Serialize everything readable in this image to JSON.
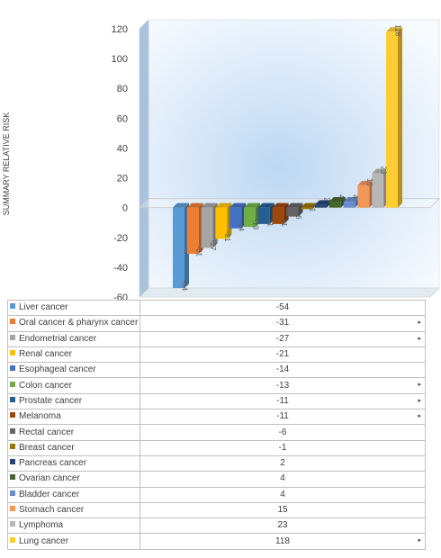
{
  "chart_data": {
    "type": "bar",
    "ylabel": "SUMMARY RELATIVE RISK",
    "ylim": [
      -60,
      120
    ],
    "yticks": [
      -60,
      -40,
      -20,
      0,
      20,
      40,
      60,
      80,
      100,
      120
    ],
    "categories": [
      "Liver cancer",
      "Oral cancer & pharynx cancer",
      "Endometrial cancer",
      "Renal cancer",
      "Esophageal cancer",
      "Colon cancer",
      "Prostate cancer",
      "Melanoma",
      "Rectal cancer",
      "Breast cancer",
      "Pancreas cancer",
      "Ovarian cancer",
      "Bladder cancer",
      "Stomach cancer",
      "Lymphoma",
      "Lung cancer"
    ],
    "values": [
      -54,
      -31,
      -27,
      -21,
      -14,
      -13,
      -11,
      -11,
      -6,
      -1,
      2,
      4,
      4,
      15,
      23,
      118
    ],
    "colors": [
      "#5b9bd5",
      "#ed7d31",
      "#a5a5a5",
      "#ffc000",
      "#4472c4",
      "#70ad47",
      "#255e91",
      "#9e480e",
      "#636363",
      "#997300",
      "#264478",
      "#43682b",
      "#698ed0",
      "#f1975a",
      "#b7b7b7",
      "#ffcd33"
    ],
    "table_marks": [
      "",
      "▸",
      "▸",
      "",
      "",
      "▸",
      "▸",
      "▸",
      "",
      "",
      "",
      "",
      "",
      "",
      "",
      "▸"
    ],
    "grid": false,
    "legend": "data-table-below"
  }
}
